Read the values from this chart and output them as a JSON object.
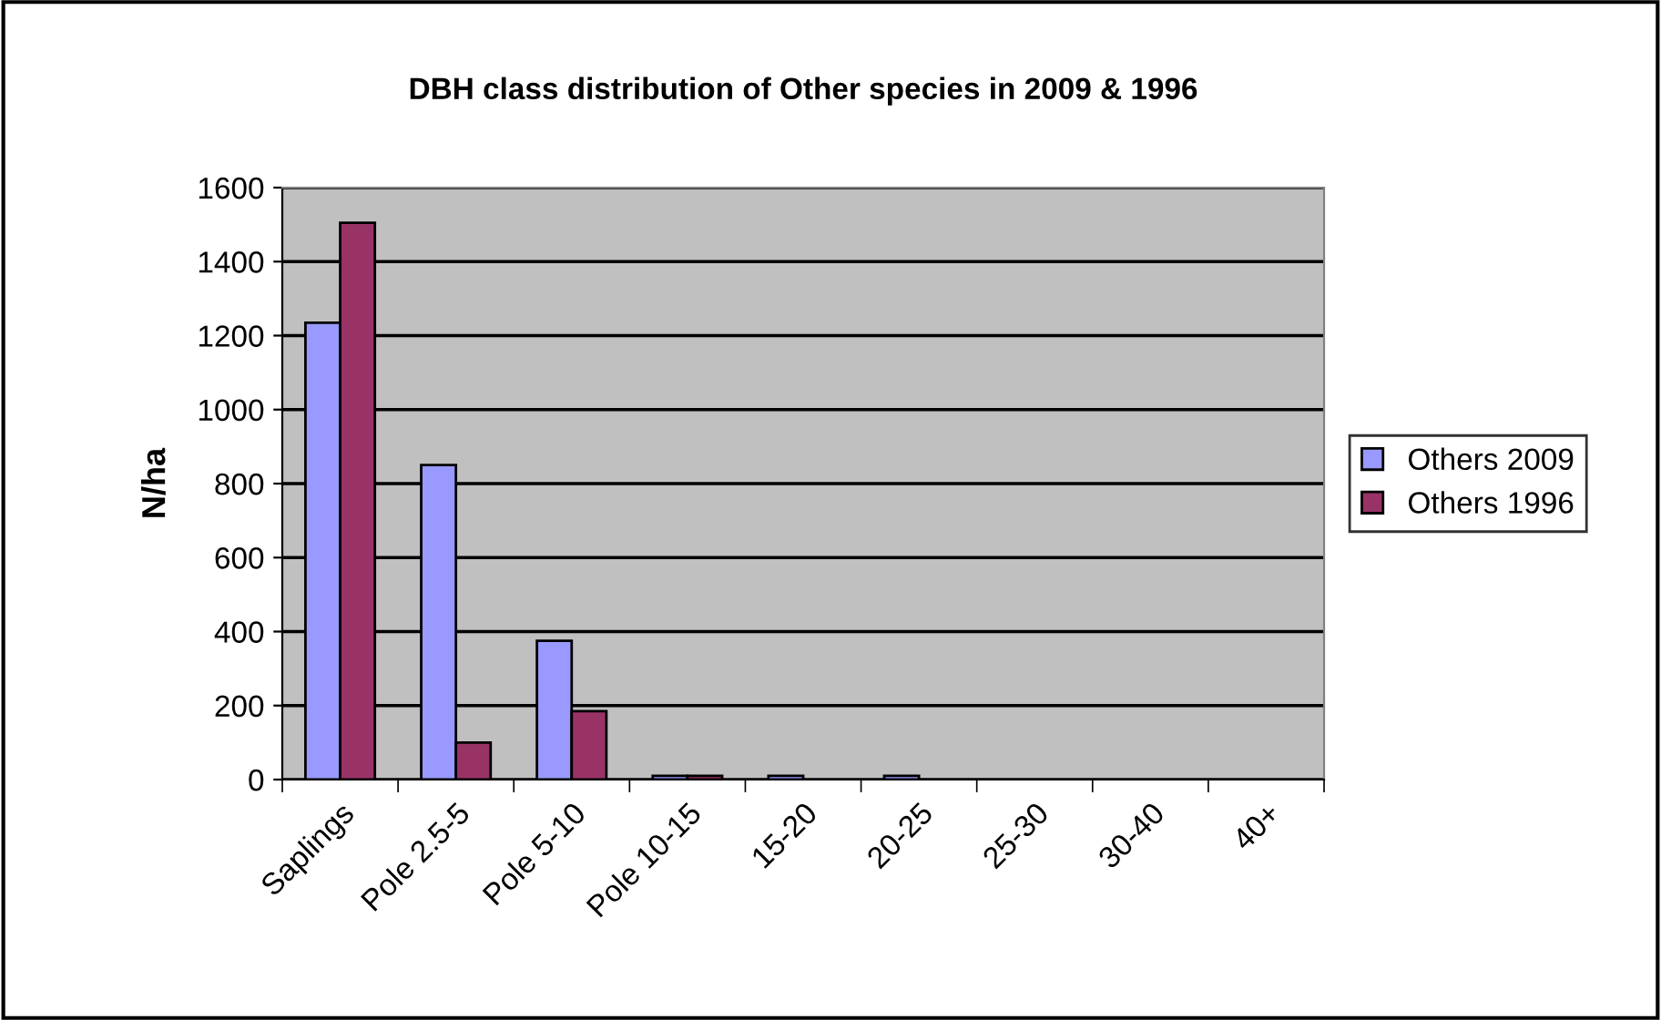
{
  "chart_data": {
    "type": "bar",
    "title": "DBH class distribution of Other species in 2009 & 1996",
    "ylabel": "N/ha",
    "categories": [
      "Saplings",
      "Pole 2.5-5",
      "Pole 5-10",
      "Pole 10-15",
      "15-20",
      "20-25",
      "25-30",
      "30-40",
      "40+"
    ],
    "series": [
      {
        "name": "Others 2009",
        "color": "#9999ff",
        "values": [
          1235,
          850,
          375,
          10,
          10,
          10,
          0,
          0,
          0
        ]
      },
      {
        "name": "Others 1996",
        "color": "#993366",
        "values": [
          1505,
          100,
          185,
          10,
          0,
          0,
          0,
          0,
          0
        ]
      }
    ],
    "ylim": [
      0,
      1600
    ],
    "yticks": [
      0,
      200,
      400,
      600,
      800,
      1000,
      1200,
      1400,
      1600
    ],
    "grid": "y",
    "legend": "right"
  }
}
